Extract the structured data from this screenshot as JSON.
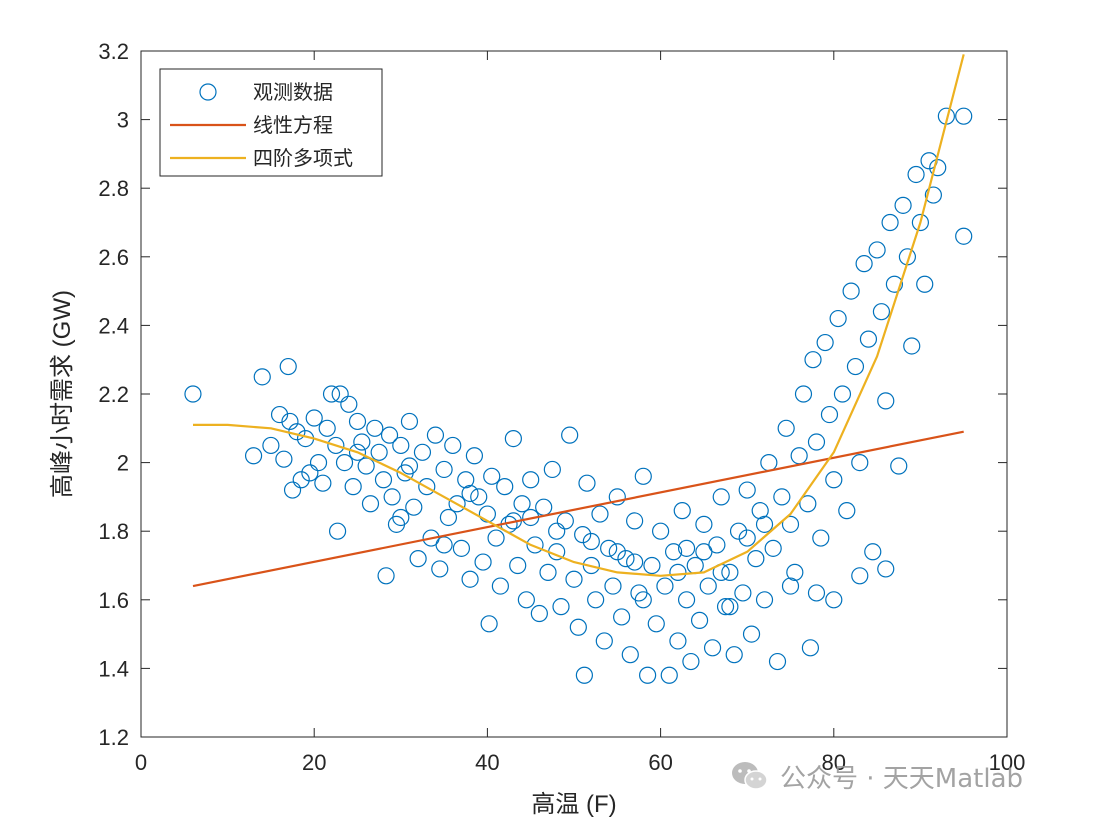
{
  "chart_data": {
    "type": "scatter",
    "title": "",
    "xlabel": "高温 (F)",
    "ylabel": "高峰小时需求 (GW)",
    "xlim": [
      0,
      100
    ],
    "ylim": [
      1.2,
      3.2
    ],
    "xticks": [
      "0",
      "20",
      "40",
      "60",
      "80",
      "100"
    ],
    "yticks": [
      "1.2",
      "1.4",
      "1.6",
      "1.8",
      "2",
      "2.2",
      "2.4",
      "2.6",
      "2.8",
      "3",
      "3.2"
    ],
    "grid": false,
    "legend_position": "top-left",
    "series": [
      {
        "name": "观测数据",
        "kind": "scatter",
        "marker": "circle-open",
        "color": "#0072BD",
        "points": [
          [
            6,
            2.2
          ],
          [
            13,
            2.02
          ],
          [
            14,
            2.25
          ],
          [
            15,
            2.05
          ],
          [
            16,
            2.14
          ],
          [
            16.5,
            2.01
          ],
          [
            17,
            2.28
          ],
          [
            17.2,
            2.12
          ],
          [
            17.5,
            1.92
          ],
          [
            18,
            2.09
          ],
          [
            18.5,
            1.95
          ],
          [
            19,
            2.07
          ],
          [
            19.5,
            1.97
          ],
          [
            20,
            2.13
          ],
          [
            20.5,
            2.0
          ],
          [
            21,
            1.94
          ],
          [
            21.5,
            2.1
          ],
          [
            22,
            2.2
          ],
          [
            22.5,
            2.05
          ],
          [
            22.7,
            1.8
          ],
          [
            23,
            2.2
          ],
          [
            23.5,
            2.0
          ],
          [
            24,
            2.17
          ],
          [
            24.5,
            1.93
          ],
          [
            25,
            2.12
          ],
          [
            25.5,
            2.06
          ],
          [
            26,
            1.99
          ],
          [
            26.5,
            1.88
          ],
          [
            27,
            2.1
          ],
          [
            27.5,
            2.03
          ],
          [
            28,
            1.95
          ],
          [
            28.3,
            1.67
          ],
          [
            28.7,
            2.08
          ],
          [
            29,
            1.9
          ],
          [
            29.5,
            1.82
          ],
          [
            30,
            2.05
          ],
          [
            30.5,
            1.97
          ],
          [
            31,
            2.12
          ],
          [
            31.5,
            1.87
          ],
          [
            32,
            1.72
          ],
          [
            32.5,
            2.03
          ],
          [
            33,
            1.93
          ],
          [
            33.5,
            1.78
          ],
          [
            34,
            2.08
          ],
          [
            34.5,
            1.69
          ],
          [
            35,
            1.98
          ],
          [
            35.5,
            1.84
          ],
          [
            36,
            2.05
          ],
          [
            36.5,
            1.88
          ],
          [
            37,
            1.75
          ],
          [
            37.5,
            1.95
          ],
          [
            38,
            1.66
          ],
          [
            38.5,
            2.02
          ],
          [
            39,
            1.9
          ],
          [
            39.5,
            1.71
          ],
          [
            40,
            1.85
          ],
          [
            40.2,
            1.53
          ],
          [
            40.5,
            1.96
          ],
          [
            41,
            1.78
          ],
          [
            41.5,
            1.64
          ],
          [
            42,
            1.93
          ],
          [
            42.5,
            1.82
          ],
          [
            43,
            2.07
          ],
          [
            43.5,
            1.7
          ],
          [
            44,
            1.88
          ],
          [
            44.5,
            1.6
          ],
          [
            45,
            1.95
          ],
          [
            45.5,
            1.76
          ],
          [
            46,
            1.56
          ],
          [
            46.5,
            1.87
          ],
          [
            47,
            1.68
          ],
          [
            47.5,
            1.98
          ],
          [
            48,
            1.74
          ],
          [
            48.5,
            1.58
          ],
          [
            49,
            1.83
          ],
          [
            49.5,
            2.08
          ],
          [
            50,
            1.66
          ],
          [
            50.5,
            1.52
          ],
          [
            51,
            1.79
          ],
          [
            51.2,
            1.38
          ],
          [
            51.5,
            1.94
          ],
          [
            52,
            1.7
          ],
          [
            52.5,
            1.6
          ],
          [
            53,
            1.85
          ],
          [
            53.5,
            1.48
          ],
          [
            54,
            1.75
          ],
          [
            54.5,
            1.64
          ],
          [
            55,
            1.9
          ],
          [
            55.5,
            1.55
          ],
          [
            56,
            1.72
          ],
          [
            56.5,
            1.44
          ],
          [
            57,
            1.83
          ],
          [
            57.5,
            1.62
          ],
          [
            58,
            1.96
          ],
          [
            58.5,
            1.38
          ],
          [
            59,
            1.7
          ],
          [
            59.5,
            1.53
          ],
          [
            60,
            1.8
          ],
          [
            60.5,
            1.64
          ],
          [
            61,
            1.38
          ],
          [
            61.5,
            1.74
          ],
          [
            62,
            1.48
          ],
          [
            62.5,
            1.86
          ],
          [
            63,
            1.6
          ],
          [
            63.5,
            1.42
          ],
          [
            64,
            1.7
          ],
          [
            64.5,
            1.54
          ],
          [
            65,
            1.82
          ],
          [
            65.5,
            1.64
          ],
          [
            66,
            1.46
          ],
          [
            66.5,
            1.76
          ],
          [
            67,
            1.9
          ],
          [
            67.5,
            1.58
          ],
          [
            68,
            1.68
          ],
          [
            68.5,
            1.44
          ],
          [
            69,
            1.8
          ],
          [
            69.5,
            1.62
          ],
          [
            70,
            1.92
          ],
          [
            70.5,
            1.5
          ],
          [
            71,
            1.72
          ],
          [
            71.5,
            1.86
          ],
          [
            72,
            1.6
          ],
          [
            72.5,
            2.0
          ],
          [
            73,
            1.75
          ],
          [
            73.5,
            1.42
          ],
          [
            74,
            1.9
          ],
          [
            74.5,
            2.1
          ],
          [
            75,
            1.82
          ],
          [
            75.5,
            1.68
          ],
          [
            76,
            2.02
          ],
          [
            76.5,
            2.2
          ],
          [
            77,
            1.88
          ],
          [
            77.3,
            1.46
          ],
          [
            77.6,
            2.3
          ],
          [
            78,
            2.06
          ],
          [
            78.5,
            1.78
          ],
          [
            79,
            2.35
          ],
          [
            79.5,
            2.14
          ],
          [
            80,
            1.95
          ],
          [
            80.5,
            2.42
          ],
          [
            81,
            2.2
          ],
          [
            81.5,
            1.86
          ],
          [
            82,
            2.5
          ],
          [
            82.5,
            2.28
          ],
          [
            83,
            2.0
          ],
          [
            83.5,
            2.58
          ],
          [
            84,
            2.36
          ],
          [
            84.5,
            1.74
          ],
          [
            85,
            2.62
          ],
          [
            85.5,
            2.44
          ],
          [
            86,
            2.18
          ],
          [
            86.5,
            2.7
          ],
          [
            87,
            2.52
          ],
          [
            87.5,
            1.99
          ],
          [
            88,
            2.75
          ],
          [
            88.5,
            2.6
          ],
          [
            89,
            2.34
          ],
          [
            89.5,
            2.84
          ],
          [
            90,
            2.7
          ],
          [
            90.5,
            2.52
          ],
          [
            91,
            2.88
          ],
          [
            91.5,
            2.78
          ],
          [
            92,
            2.86
          ],
          [
            93,
            3.01
          ],
          [
            95,
            3.01
          ],
          [
            95,
            2.66
          ],
          [
            30,
            1.84
          ],
          [
            35,
            1.76
          ],
          [
            45,
            1.84
          ],
          [
            55,
            1.74
          ],
          [
            58,
            1.6
          ],
          [
            62,
            1.68
          ],
          [
            65,
            1.74
          ],
          [
            68,
            1.58
          ],
          [
            72,
            1.82
          ],
          [
            75,
            1.64
          ],
          [
            78,
            1.62
          ],
          [
            80,
            1.6
          ],
          [
            83,
            1.67
          ],
          [
            86,
            1.69
          ],
          [
            25,
            2.03
          ],
          [
            31,
            1.99
          ],
          [
            38,
            1.91
          ],
          [
            43,
            1.83
          ],
          [
            48,
            1.8
          ],
          [
            52,
            1.77
          ],
          [
            57,
            1.71
          ],
          [
            63,
            1.75
          ],
          [
            67,
            1.68
          ],
          [
            70,
            1.78
          ]
        ]
      },
      {
        "name": "线性方程",
        "kind": "line",
        "color": "#D95319",
        "x": [
          6,
          95
        ],
        "y": [
          1.64,
          2.09
        ]
      },
      {
        "name": "四阶多项式",
        "kind": "line",
        "color": "#EDB120",
        "x": [
          6,
          10,
          15,
          20,
          25,
          30,
          35,
          40,
          45,
          50,
          55,
          60,
          65,
          70,
          75,
          80,
          85,
          90,
          95
        ],
        "y": [
          2.11,
          2.11,
          2.1,
          2.07,
          2.03,
          1.97,
          1.9,
          1.83,
          1.76,
          1.71,
          1.68,
          1.67,
          1.68,
          1.74,
          1.85,
          2.03,
          2.31,
          2.7,
          3.19
        ]
      }
    ]
  },
  "watermark": {
    "text": "公众号 · 天天Matlab",
    "icon": "wechat-icon"
  }
}
